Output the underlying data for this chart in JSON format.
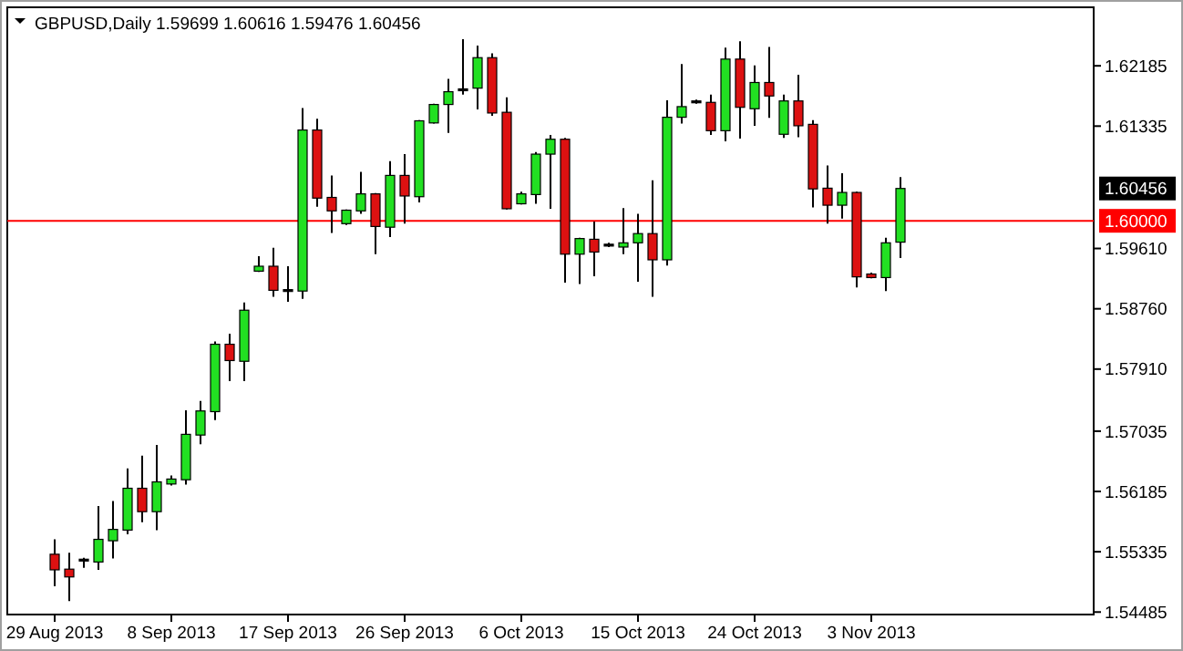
{
  "chart_data": {
    "type": "candlestick",
    "title": "GBPUSD,Daily 1.59699 1.60616 1.59476 1.60456",
    "categories": [
      "29 Aug 2013",
      null,
      null,
      null,
      null,
      null,
      null,
      null,
      "8 Sep 2013",
      null,
      null,
      null,
      null,
      null,
      null,
      null,
      "17 Sep 2013",
      null,
      null,
      null,
      null,
      null,
      null,
      null,
      "26 Sep 2013",
      null,
      null,
      null,
      null,
      null,
      null,
      null,
      "6 Oct 2013",
      null,
      null,
      null,
      null,
      null,
      null,
      null,
      "15 Oct 2013",
      null,
      null,
      null,
      null,
      null,
      null,
      null,
      "24 Oct 2013",
      null,
      null,
      null,
      null,
      null,
      null,
      null,
      "3 Nov 2013",
      null,
      null,
      null,
      null,
      null,
      null,
      null,
      null,
      null,
      null,
      null,
      null,
      null,
      null,
      null
    ],
    "ohlc": [
      [
        1.553,
        1.5551,
        1.5485,
        1.5508
      ],
      [
        1.5509,
        1.5532,
        1.5464,
        1.5498
      ],
      [
        1.5522,
        1.5525,
        1.5511,
        1.5523
      ],
      [
        1.5519,
        1.5598,
        1.5508,
        1.5551
      ],
      [
        1.5549,
        1.5605,
        1.5524,
        1.5565
      ],
      [
        1.5564,
        1.5651,
        1.5558,
        1.5623
      ],
      [
        1.5623,
        1.5669,
        1.5575,
        1.559
      ],
      [
        1.559,
        1.5684,
        1.5564,
        1.5632
      ],
      [
        1.5629,
        1.5641,
        1.5627,
        1.5636
      ],
      [
        1.5635,
        1.5733,
        1.5628,
        1.5699
      ],
      [
        1.5698,
        1.5746,
        1.5685,
        1.5732
      ],
      [
        1.5731,
        1.583,
        1.5719,
        1.5826
      ],
      [
        1.5826,
        1.5841,
        1.5774,
        1.5803
      ],
      [
        1.5802,
        1.5885,
        1.5774,
        1.5874
      ],
      [
        1.5929,
        1.595,
        1.5928,
        1.5936
      ],
      [
        1.5936,
        1.5962,
        1.5893,
        1.5902
      ],
      [
        1.5902,
        1.5936,
        1.5886,
        1.5903
      ],
      [
        1.5901,
        1.6159,
        1.589,
        1.6128
      ],
      [
        1.6128,
        1.6144,
        1.602,
        1.6032
      ],
      [
        1.6033,
        1.6064,
        1.5983,
        1.6014
      ],
      [
        1.5996,
        1.6016,
        1.5994,
        1.6015
      ],
      [
        1.6014,
        1.6069,
        1.601,
        1.6038
      ],
      [
        1.6038,
        1.6039,
        1.5953,
        1.5992
      ],
      [
        1.5991,
        1.6084,
        1.5977,
        1.6064
      ],
      [
        1.6064,
        1.6094,
        1.5996,
        1.6035
      ],
      [
        1.6034,
        1.6142,
        1.6026,
        1.6141
      ],
      [
        1.6138,
        1.6165,
        1.6137,
        1.6164
      ],
      [
        1.6164,
        1.62,
        1.6124,
        1.6182
      ],
      [
        1.6185,
        1.6256,
        1.6178,
        1.6186
      ],
      [
        1.6187,
        1.6247,
        1.6157,
        1.623
      ],
      [
        1.623,
        1.6236,
        1.6148,
        1.6152
      ],
      [
        1.6153,
        1.6174,
        1.6016,
        1.6017
      ],
      [
        1.6024,
        1.6041,
        1.6023,
        1.6038
      ],
      [
        1.6037,
        1.6097,
        1.6024,
        1.6094
      ],
      [
        1.6094,
        1.6121,
        1.6017,
        1.6115
      ],
      [
        1.6115,
        1.6117,
        1.5913,
        1.5953
      ],
      [
        1.5953,
        1.5976,
        1.5911,
        1.5975
      ],
      [
        1.5974,
        1.5999,
        1.5922,
        1.5956
      ],
      [
        1.5966,
        1.5969,
        1.5963,
        1.5967
      ],
      [
        1.5963,
        1.6018,
        1.5953,
        1.5969
      ],
      [
        1.5969,
        1.601,
        1.5914,
        1.5982
      ],
      [
        1.5982,
        1.6057,
        1.5893,
        1.5945
      ],
      [
        1.5945,
        1.617,
        1.5937,
        1.6146
      ],
      [
        1.6146,
        1.6221,
        1.6137,
        1.6161
      ],
      [
        1.6168,
        1.6171,
        1.6165,
        1.6169
      ],
      [
        1.6167,
        1.6178,
        1.6121,
        1.6127
      ],
      [
        1.6127,
        1.6244,
        1.6112,
        1.6228
      ],
      [
        1.6228,
        1.6253,
        1.6116,
        1.616
      ],
      [
        1.6158,
        1.6219,
        1.6134,
        1.6195
      ],
      [
        1.6195,
        1.6245,
        1.6145,
        1.6176
      ],
      [
        1.6122,
        1.6178,
        1.6117,
        1.6169
      ],
      [
        1.6169,
        1.6206,
        1.6118,
        1.6134
      ],
      [
        1.6136,
        1.6142,
        1.6019,
        1.6045
      ],
      [
        1.6046,
        1.6078,
        1.5996,
        1.6022
      ],
      [
        1.6022,
        1.6067,
        1.6003,
        1.604
      ],
      [
        1.604,
        1.6041,
        1.5906,
        1.5921
      ],
      [
        1.5925,
        1.5927,
        1.5919,
        1.592
      ],
      [
        1.592,
        1.5976,
        1.5901,
        1.5969
      ],
      [
        1.59699,
        1.60616,
        1.59476,
        1.60456
      ],
      null,
      null,
      null,
      null,
      null,
      null,
      null,
      null,
      null,
      null,
      null,
      null,
      null
    ],
    "ylim": [
      1.5445,
      1.6301
    ],
    "yticks": [
      1.62185,
      1.61335,
      {
        "value": 1.5961,
        "label": "1.59610"
      },
      {
        "value": 1.5876,
        "label": "1.58760"
      },
      {
        "value": 1.5791,
        "label": "1.57910"
      },
      1.57035,
      1.56185,
      1.55335,
      1.54485
    ],
    "ref_lines": [
      {
        "axis": "y",
        "value": 1.6,
        "label": "1.60000",
        "color": "#ff0000"
      }
    ],
    "annotations": [
      "1.60456"
    ],
    "grid": false
  }
}
